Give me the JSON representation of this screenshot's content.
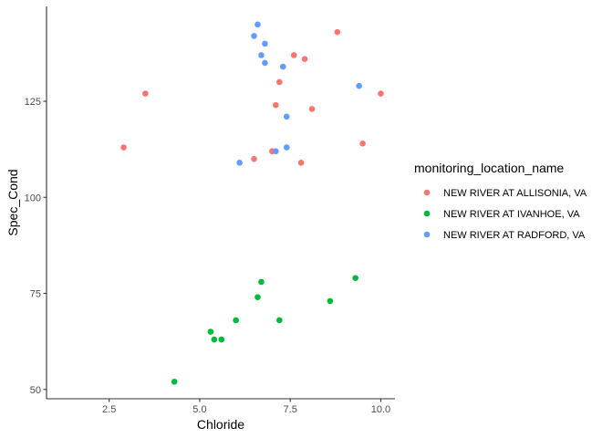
{
  "chart_data": {
    "type": "scatter",
    "title": "",
    "xlabel": "Chloride",
    "ylabel": "Spec_Cond",
    "xlim": [
      0.78,
      10.4
    ],
    "ylim": [
      47.6,
      149.5
    ],
    "xticks": [
      2.5,
      5.0,
      7.5,
      10.0
    ],
    "xtick_labels": [
      "2.5",
      "5.0",
      "7.5",
      "10.0"
    ],
    "yticks": [
      50,
      75,
      100,
      125
    ],
    "ytick_labels": [
      "50",
      "75",
      "100",
      "125"
    ],
    "grid": false,
    "legend_position": "right",
    "legend_title": "monitoring_location_name",
    "series": [
      {
        "name": "NEW RIVER AT ALLISONIA, VA",
        "color": "#F8766D",
        "points": [
          [
            8.8,
            143
          ],
          [
            7.6,
            137
          ],
          [
            7.9,
            136
          ],
          [
            7.2,
            130
          ],
          [
            10.0,
            127
          ],
          [
            3.5,
            127
          ],
          [
            7.1,
            124
          ],
          [
            8.1,
            123
          ],
          [
            9.5,
            114
          ],
          [
            2.9,
            113
          ],
          [
            7.0,
            112
          ],
          [
            6.5,
            110
          ],
          [
            7.8,
            109
          ]
        ]
      },
      {
        "name": "NEW RIVER AT IVANHOE, VA",
        "color": "#00BA38",
        "points": [
          [
            9.3,
            79
          ],
          [
            6.7,
            78
          ],
          [
            6.6,
            74
          ],
          [
            8.6,
            73
          ],
          [
            6.0,
            68
          ],
          [
            7.2,
            68
          ],
          [
            5.3,
            65
          ],
          [
            5.4,
            63
          ],
          [
            5.6,
            63
          ],
          [
            4.3,
            52
          ]
        ]
      },
      {
        "name": "NEW RIVER AT RADFORD, VA",
        "color": "#619CFF",
        "points": [
          [
            6.6,
            145
          ],
          [
            6.5,
            142
          ],
          [
            6.8,
            140
          ],
          [
            6.7,
            137
          ],
          [
            6.8,
            135
          ],
          [
            7.3,
            134
          ],
          [
            9.4,
            129
          ],
          [
            7.4,
            121
          ],
          [
            7.4,
            113
          ],
          [
            7.1,
            112
          ],
          [
            6.1,
            109
          ]
        ]
      }
    ]
  }
}
